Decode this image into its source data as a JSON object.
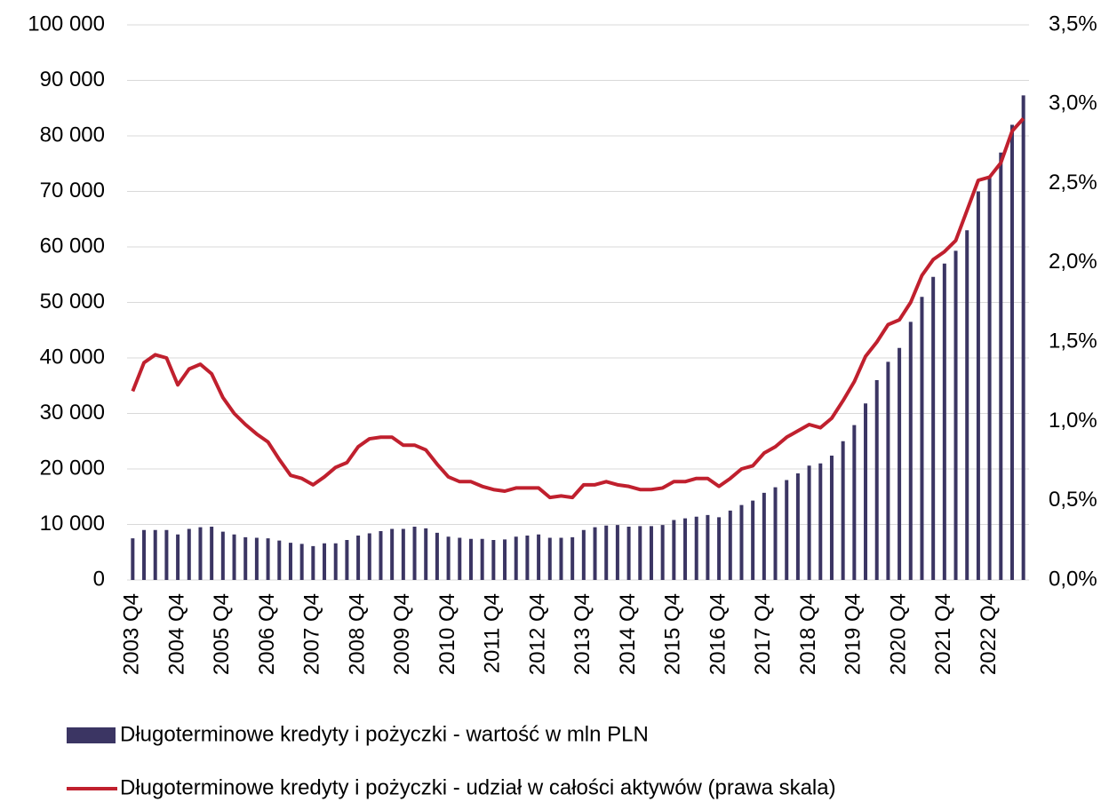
{
  "chart_data": {
    "type": "bar+line",
    "categories": [
      "2003 Q4",
      null,
      null,
      null,
      "2004 Q4",
      null,
      null,
      null,
      "2005 Q4",
      null,
      null,
      null,
      "2006 Q4",
      null,
      null,
      null,
      "2007 Q4",
      null,
      null,
      null,
      "2008 Q4",
      null,
      null,
      null,
      "2009 Q4",
      null,
      null,
      null,
      "2010 Q4",
      null,
      null,
      null,
      "2011 Q4",
      null,
      null,
      null,
      "2012 Q4",
      null,
      null,
      null,
      "2013 Q4",
      null,
      null,
      null,
      "2014 Q4",
      null,
      null,
      null,
      "2015 Q4",
      null,
      null,
      null,
      "2016 Q4",
      null,
      null,
      null,
      "2017 Q4",
      null,
      null,
      null,
      "2018 Q4",
      null,
      null,
      null,
      "2019 Q4",
      null,
      null,
      null,
      "2020 Q4",
      null,
      null,
      null,
      "2021 Q4",
      null,
      null,
      null,
      "2022 Q4",
      null,
      null,
      null
    ],
    "series": [
      {
        "name": "Długoterminowe kredyty i pożyczki - wartość w mln PLN",
        "type": "bar",
        "color": "#3b3563",
        "values": [
          7500,
          9000,
          9000,
          9000,
          8200,
          9200,
          9500,
          9600,
          8700,
          8200,
          7700,
          7600,
          7500,
          7100,
          6700,
          6500,
          6100,
          6600,
          6600,
          7200,
          8000,
          8400,
          8800,
          9200,
          9200,
          9600,
          9300,
          8500,
          7800,
          7600,
          7400,
          7400,
          7200,
          7300,
          7800,
          8000,
          8200,
          7600,
          7600,
          7700,
          9000,
          9500,
          9800,
          9900,
          9600,
          9700,
          9700,
          9900,
          10800,
          11100,
          11400,
          11700,
          11300,
          12500,
          13500,
          14300,
          15700,
          16700,
          18000,
          19200,
          20600,
          21000,
          22400,
          25000,
          27900,
          31800,
          36000,
          39300,
          41800,
          46500,
          51000,
          54600,
          57000,
          59300,
          63000,
          70000,
          72500,
          77000,
          82000,
          87300
        ]
      },
      {
        "name": "Długoterminowe kredyty i pożyczki - udział w całości aktywów (prawa skala)",
        "type": "line",
        "axis": "y2",
        "color": "#c0202e",
        "values": [
          1.19,
          1.37,
          1.42,
          1.4,
          1.23,
          1.33,
          1.36,
          1.3,
          1.15,
          1.05,
          0.98,
          0.92,
          0.87,
          0.76,
          0.66,
          0.64,
          0.6,
          0.65,
          0.71,
          0.74,
          0.84,
          0.89,
          0.9,
          0.9,
          0.85,
          0.85,
          0.82,
          0.73,
          0.65,
          0.62,
          0.62,
          0.59,
          0.57,
          0.56,
          0.58,
          0.58,
          0.58,
          0.52,
          0.53,
          0.52,
          0.6,
          0.6,
          0.62,
          0.6,
          0.59,
          0.57,
          0.57,
          0.58,
          0.62,
          0.62,
          0.64,
          0.64,
          0.59,
          0.64,
          0.7,
          0.72,
          0.8,
          0.84,
          0.9,
          0.94,
          0.98,
          0.96,
          1.02,
          1.13,
          1.25,
          1.41,
          1.5,
          1.61,
          1.64,
          1.75,
          1.92,
          2.02,
          2.07,
          2.14,
          2.33,
          2.52,
          2.54,
          2.63,
          2.83,
          2.91
        ]
      }
    ],
    "ylim": [
      0,
      100000
    ],
    "yticks": [
      0,
      {
        "value": 10000,
        "label": "10 000"
      },
      {
        "value": 20000,
        "label": "20 000"
      },
      {
        "value": 30000,
        "label": "30 000"
      },
      {
        "value": 40000,
        "label": "40 000"
      },
      {
        "value": 50000,
        "label": "50 000"
      },
      {
        "value": 60000,
        "label": "60 000"
      },
      {
        "value": 70000,
        "label": "70 000"
      },
      {
        "value": 80000,
        "label": "80 000"
      },
      {
        "value": 90000,
        "label": "90 000"
      },
      {
        "value": 100000,
        "label": "100 000"
      }
    ],
    "y2lim": [
      0,
      3.5
    ],
    "y2ticks": [
      {
        "value": 0,
        "label": "0,0%"
      },
      {
        "value": 0.5,
        "label": "0,5%"
      },
      {
        "value": 1,
        "label": "1,0%"
      },
      {
        "value": 1.5,
        "label": "1,5%"
      },
      {
        "value": 2,
        "label": "2,0%"
      },
      {
        "value": 2.5,
        "label": "2,5%"
      },
      {
        "value": 3,
        "label": "3,0%"
      },
      {
        "value": 3.5,
        "label": "3,5%"
      }
    ],
    "grid": true,
    "legend": "bottom"
  }
}
